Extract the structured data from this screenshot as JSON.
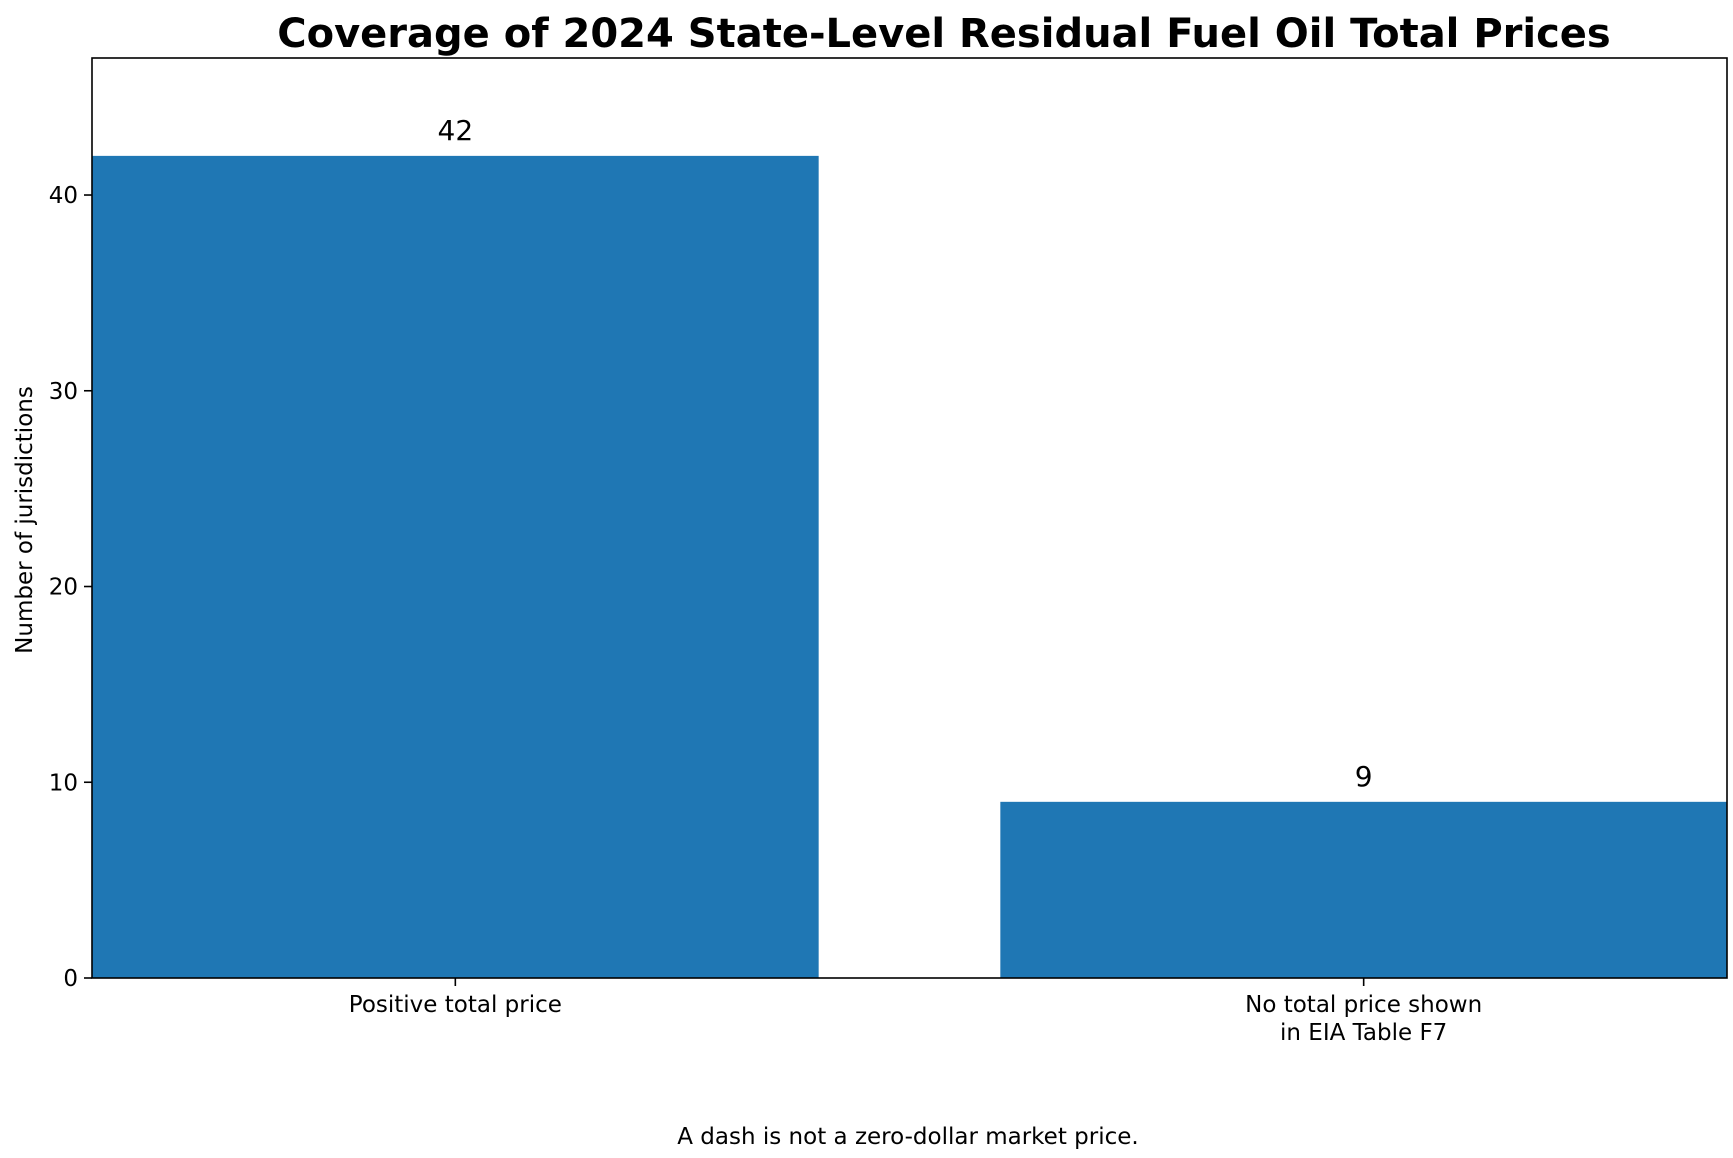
{
  "chart_data": {
    "type": "bar",
    "title": "Coverage of 2024 State-Level Residual Fuel Oil Total Prices",
    "xlabel": "",
    "ylabel": "Number of jurisdictions",
    "categories": [
      [
        "Positive total price"
      ],
      [
        "No total price shown",
        "in EIA Table F7"
      ]
    ],
    "values": [
      42,
      9
    ],
    "data_labels": [
      "42",
      "9"
    ],
    "ylim": [
      0,
      47
    ],
    "yticks": [
      0,
      10,
      20,
      30,
      40
    ],
    "bar_color": "#1f77b4",
    "grid": false,
    "legend": "none"
  },
  "caption": "A dash is not a zero-dollar market price."
}
